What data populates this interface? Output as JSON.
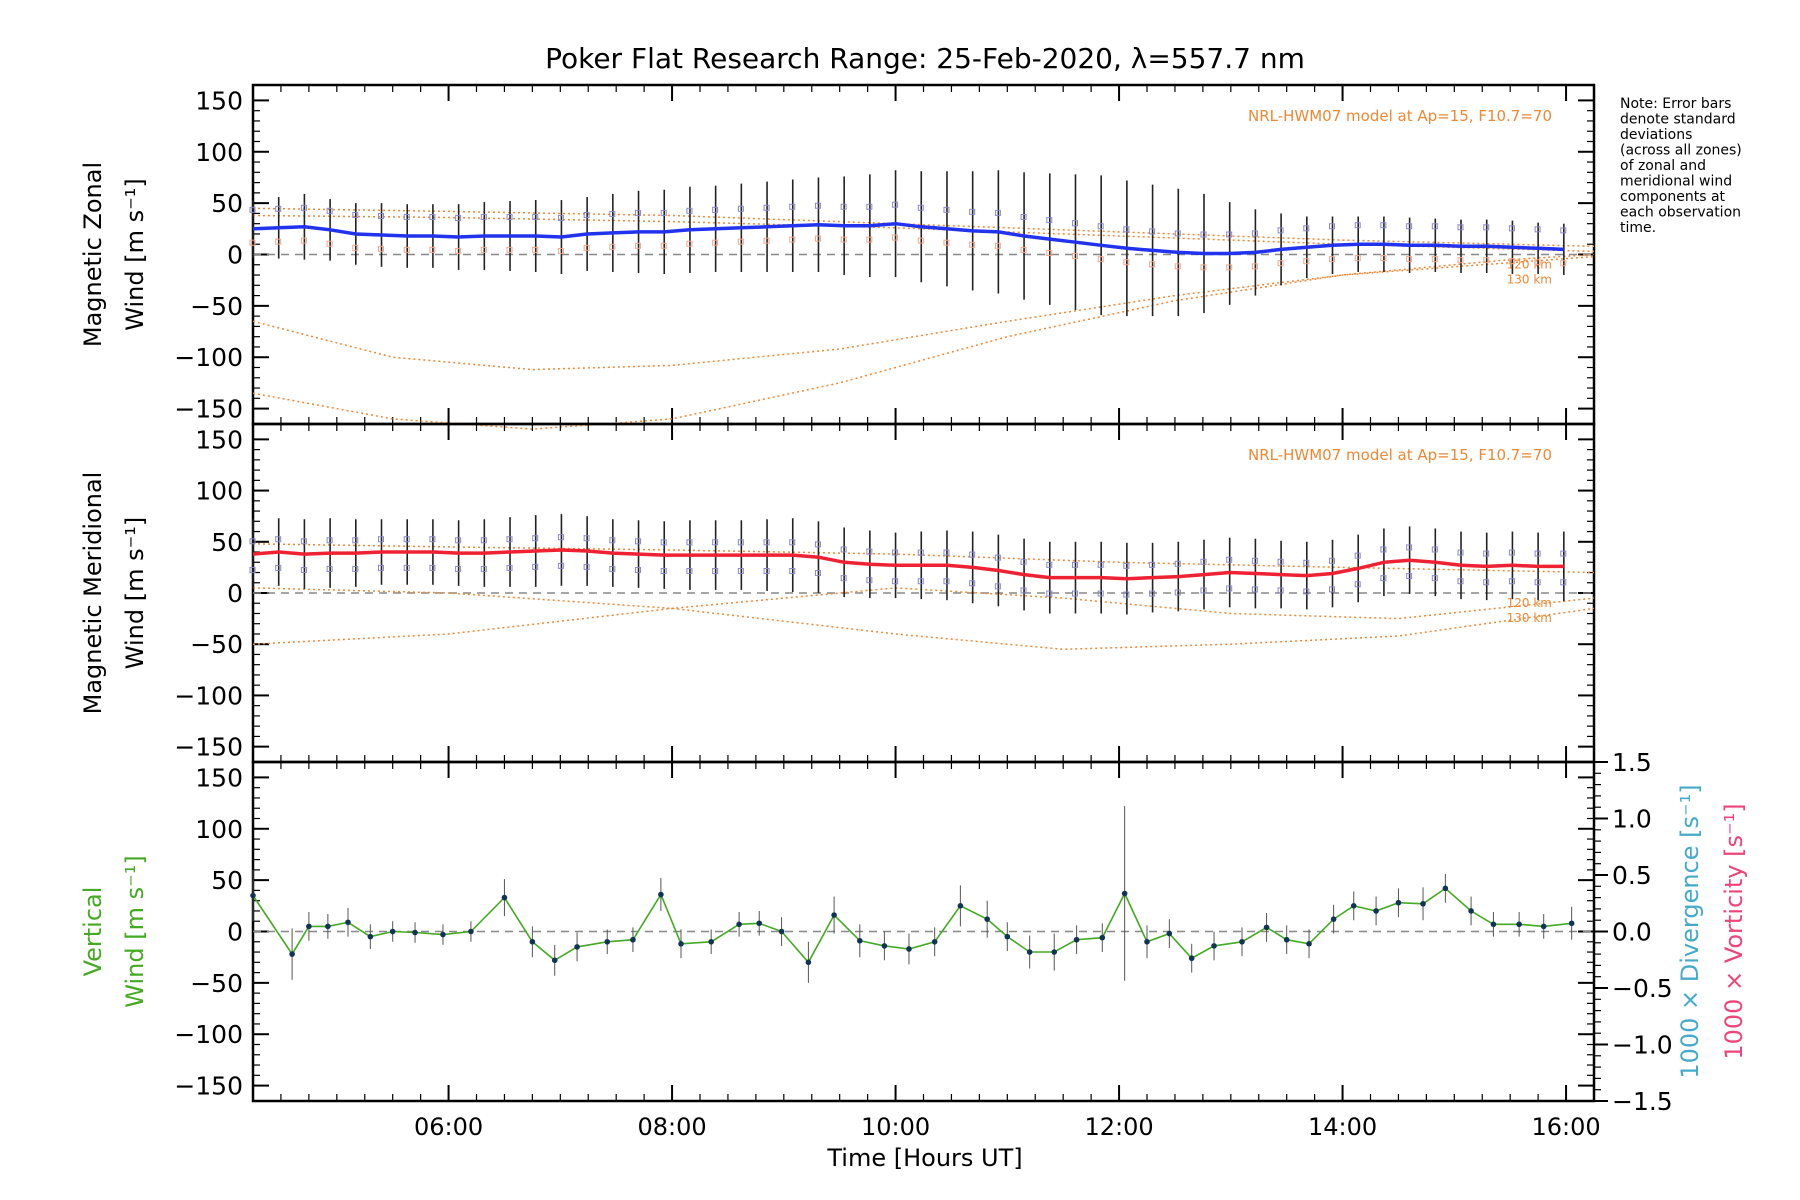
{
  "title": "Poker Flat Research Range: 25-Feb-2020, λ=557.7 nm",
  "note_lines": [
    "Note: Error bars",
    "denote standard",
    "deviations",
    "(across all zones)",
    "of zonal and",
    "meridional wind",
    "components at",
    "each observation",
    "time."
  ],
  "model_label": "NRL-HWM07 model at Ap=15, F10.7=70",
  "alt_labels": [
    "120 km",
    "130 km"
  ],
  "xlabel": "Time [Hours UT]",
  "colors": {
    "zonal": "#2233ee",
    "meridional": "#ee2233",
    "vertical": "#44aa22",
    "model": "#ee8833",
    "divergence": "#44aacc",
    "vorticity": "#ee4477",
    "scatter": "#8888cc"
  },
  "chart_data": [
    {
      "type": "line",
      "panel": "zonal",
      "ylabel": [
        "Magnetic Zonal",
        "Wind [m s⁻¹]"
      ],
      "xlim": [
        4.25,
        16.25
      ],
      "ylim": [
        -165,
        165
      ],
      "xticks": [
        "06:00",
        "08:00",
        "10:00",
        "12:00",
        "14:00",
        "16:00"
      ],
      "yticks": [
        "150",
        "100",
        "50",
        "0",
        "−50",
        "−100",
        "−150"
      ],
      "zero_line": true,
      "series": [
        {
          "x": [
            4.25,
            4.48,
            4.71,
            4.94,
            5.17,
            5.4,
            5.63,
            5.86,
            6.09,
            6.32,
            6.55,
            6.78,
            7.01,
            7.24,
            7.47,
            7.7,
            7.93,
            8.16,
            8.39,
            8.62,
            8.85,
            9.08,
            9.31,
            9.54,
            9.77,
            10.0,
            10.23,
            10.46,
            10.69,
            10.92,
            11.15,
            11.38,
            11.61,
            11.84,
            12.07,
            12.3,
            12.53,
            12.76,
            12.99,
            13.22,
            13.45,
            13.68,
            13.91,
            14.14,
            14.37,
            14.6,
            14.83,
            15.06,
            15.29,
            15.52,
            15.75,
            15.98
          ],
          "values": [
            25,
            26,
            27,
            24,
            20,
            19,
            18,
            18,
            17,
            18,
            18,
            18,
            17,
            20,
            21,
            22,
            22,
            24,
            25,
            26,
            27,
            28,
            29,
            28,
            28,
            30,
            27,
            25,
            23,
            22,
            18,
            15,
            12,
            9,
            6,
            4,
            2,
            1,
            1,
            2,
            5,
            7,
            9,
            10,
            10,
            9,
            9,
            8,
            8,
            7,
            6,
            5
          ],
          "error": [
            28,
            30,
            32,
            30,
            30,
            31,
            31,
            31,
            32,
            33,
            34,
            35,
            36,
            36,
            38,
            40,
            41,
            42,
            42,
            43,
            44,
            45,
            46,
            48,
            50,
            52,
            54,
            56,
            58,
            60,
            62,
            64,
            66,
            68,
            66,
            64,
            62,
            58,
            50,
            42,
            35,
            30,
            28,
            27,
            27,
            27,
            26,
            26,
            26,
            26,
            25,
            25
          ]
        }
      ],
      "model_curves": [
        {
          "x": [
            4.25,
            5.5,
            6.75,
            8.0,
            9.5,
            11.0,
            12.5,
            14.0,
            15.5,
            16.25
          ],
          "values": [
            -65,
            -100,
            -112,
            -108,
            -92,
            -65,
            -40,
            -20,
            -8,
            -2
          ]
        },
        {
          "x": [
            4.25,
            5.5,
            6.75,
            8.0,
            9.5,
            11.0,
            12.5,
            14.0,
            15.5,
            16.25
          ],
          "values": [
            -135,
            -160,
            -170,
            -160,
            -125,
            -80,
            -45,
            -20,
            -5,
            0
          ]
        },
        {
          "x": [
            4.25,
            6.0,
            8.0,
            10.0,
            12.0,
            14.0,
            16.25
          ],
          "values": [
            38,
            36,
            32,
            26,
            18,
            10,
            3
          ]
        },
        {
          "x": [
            4.25,
            6.0,
            8.0,
            10.0,
            12.0,
            14.0,
            16.25
          ],
          "values": [
            45,
            42,
            38,
            30,
            22,
            14,
            8
          ]
        }
      ]
    },
    {
      "type": "line",
      "panel": "meridional",
      "ylabel": [
        "Magnetic Meridional",
        "Wind [m s⁻¹]"
      ],
      "xlim": [
        4.25,
        16.25
      ],
      "ylim": [
        -165,
        165
      ],
      "yticks": [
        "150",
        "100",
        "50",
        "0",
        "−50",
        "−100",
        "−150"
      ],
      "zero_line": true,
      "series": [
        {
          "x": [
            4.25,
            4.48,
            4.71,
            4.94,
            5.17,
            5.4,
            5.63,
            5.86,
            6.09,
            6.32,
            6.55,
            6.78,
            7.01,
            7.24,
            7.47,
            7.7,
            7.93,
            8.16,
            8.39,
            8.62,
            8.85,
            9.08,
            9.31,
            9.54,
            9.77,
            10.0,
            10.23,
            10.46,
            10.69,
            10.92,
            11.15,
            11.38,
            11.61,
            11.84,
            12.07,
            12.3,
            12.53,
            12.76,
            12.99,
            13.22,
            13.45,
            13.68,
            13.91,
            14.14,
            14.37,
            14.6,
            14.83,
            15.06,
            15.29,
            15.52,
            15.75,
            15.98
          ],
          "values": [
            38,
            40,
            38,
            39,
            39,
            40,
            40,
            40,
            39,
            39,
            40,
            41,
            42,
            41,
            39,
            38,
            37,
            37,
            37,
            37,
            37,
            37,
            35,
            30,
            28,
            27,
            27,
            27,
            25,
            22,
            18,
            15,
            15,
            15,
            14,
            15,
            16,
            18,
            20,
            19,
            18,
            17,
            19,
            24,
            30,
            32,
            30,
            27,
            26,
            27,
            26,
            26
          ],
          "error": [
            34,
            33,
            34,
            34,
            33,
            32,
            32,
            32,
            32,
            33,
            34,
            35,
            35,
            34,
            33,
            33,
            33,
            34,
            34,
            34,
            35,
            36,
            35,
            34,
            33,
            32,
            33,
            34,
            35,
            35,
            35,
            35,
            35,
            35,
            35,
            34,
            34,
            34,
            34,
            34,
            33,
            33,
            33,
            33,
            33,
            33,
            33,
            33,
            33,
            33,
            33,
            34
          ]
        }
      ],
      "model_curves": [
        {
          "x": [
            4.25,
            6.0,
            8.0,
            10.0,
            11.5,
            13.0,
            14.5,
            16.25
          ],
          "values": [
            -50,
            -40,
            -15,
            5,
            -5,
            -20,
            -25,
            -5
          ]
        },
        {
          "x": [
            4.25,
            6.0,
            8.0,
            10.0,
            11.5,
            13.0,
            14.5,
            16.25
          ],
          "values": [
            5,
            0,
            -15,
            -40,
            -55,
            -50,
            -42,
            -15
          ]
        },
        {
          "x": [
            4.25,
            6.0,
            8.0,
            10.0,
            12.0,
            14.0,
            16.25
          ],
          "values": [
            48,
            45,
            42,
            38,
            30,
            25,
            20
          ]
        }
      ]
    },
    {
      "type": "line",
      "panel": "vertical",
      "ylabel": [
        "Vertical",
        "Wind [m s⁻¹]"
      ],
      "xlabel": "Time [Hours UT]",
      "xlim": [
        4.25,
        16.25
      ],
      "ylim": [
        -165,
        165
      ],
      "yticks": [
        "150",
        "100",
        "50",
        "0",
        "−50",
        "−100",
        "−150"
      ],
      "y2lim": [
        -1.5,
        1.5
      ],
      "y2ticks": [
        "1.5",
        "1.0",
        "0.5",
        "0.0",
        "−0.5",
        "−1.0",
        "−1.5"
      ],
      "y2labels": [
        "1000 × Divergence [s⁻¹]",
        "1000 × Vorticity [s⁻¹]"
      ],
      "zero_line": true,
      "series": [
        {
          "x": [
            4.25,
            4.6,
            4.75,
            4.92,
            5.1,
            5.3,
            5.5,
            5.7,
            5.95,
            6.2,
            6.5,
            6.75,
            6.95,
            7.15,
            7.42,
            7.65,
            7.9,
            8.08,
            8.35,
            8.6,
            8.78,
            8.98,
            9.22,
            9.45,
            9.68,
            9.9,
            10.12,
            10.35,
            10.58,
            10.82,
            11.0,
            11.2,
            11.42,
            11.62,
            11.85,
            12.05,
            12.25,
            12.45,
            12.65,
            12.85,
            13.1,
            13.32,
            13.5,
            13.7,
            13.92,
            14.1,
            14.3,
            14.5,
            14.72,
            14.92,
            15.15,
            15.35,
            15.58,
            15.8,
            16.05
          ],
          "values": [
            35,
            -22,
            5,
            5,
            9,
            -5,
            0,
            -1,
            -3,
            0,
            33,
            -10,
            -28,
            -15,
            -10,
            -8,
            36,
            -12,
            -10,
            7,
            8,
            0,
            -30,
            16,
            -9,
            -14,
            -17,
            -10,
            25,
            12,
            -5,
            -20,
            -20,
            -8,
            -6,
            37,
            -10,
            -2,
            -26,
            -14,
            -10,
            4,
            -8,
            -12,
            12,
            25,
            20,
            28,
            27,
            42,
            20,
            7,
            7,
            5,
            8
          ],
          "error": [
            25,
            25,
            14,
            12,
            14,
            12,
            10,
            10,
            10,
            10,
            18,
            15,
            15,
            14,
            12,
            12,
            16,
            14,
            12,
            12,
            12,
            14,
            20,
            18,
            16,
            14,
            15,
            14,
            20,
            18,
            14,
            16,
            18,
            14,
            14,
            85,
            16,
            14,
            14,
            14,
            14,
            14,
            14,
            14,
            14,
            14,
            14,
            14,
            16,
            14,
            14,
            12,
            12,
            12,
            16
          ]
        }
      ]
    }
  ]
}
